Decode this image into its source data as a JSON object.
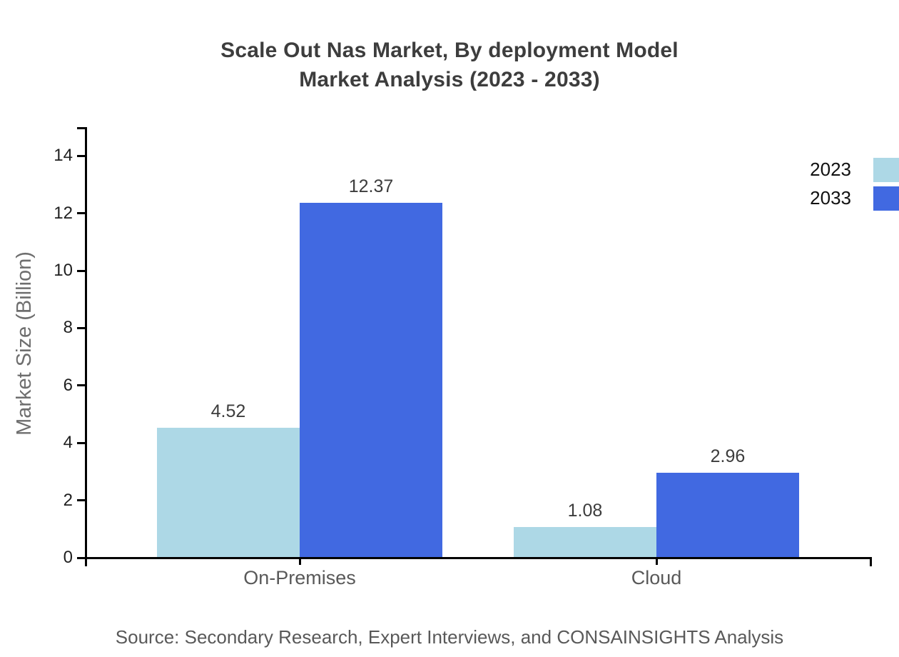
{
  "title": {
    "line1": "Scale Out Nas Market, By deployment Model",
    "line2": "Market Analysis (2023 - 2033)"
  },
  "source": "Source: Secondary Research, Expert Interviews, and CONSAINSIGHTS Analysis",
  "chart_data": {
    "type": "bar",
    "title": "Scale Out Nas Market, By deployment Model Market Analysis (2023 - 2033)",
    "categories": [
      "On-Premises",
      "Cloud"
    ],
    "series": [
      {
        "name": "2023",
        "color": "#ADD8E6",
        "values": [
          4.52,
          1.08
        ]
      },
      {
        "name": "2033",
        "color": "#4169E1",
        "values": [
          12.37,
          2.96
        ]
      }
    ],
    "value_labels": [
      "4.52",
      "12.37",
      "1.08",
      "2.96"
    ],
    "xlabel": "",
    "ylabel": "Market Size (Billion)",
    "ylim": [
      0,
      15
    ],
    "yticks": [
      0,
      2,
      4,
      6,
      8,
      10,
      12,
      14
    ],
    "grid": false,
    "legend_position": "right"
  },
  "colors": {
    "axis": "#000000",
    "tick_label": "#1f1f1f",
    "category_label": "#595959",
    "value_label": "#3c3c3c",
    "title": "#3d3d3d",
    "axis_title": "#6e6e6e",
    "source": "#595959",
    "background": "#ffffff"
  }
}
